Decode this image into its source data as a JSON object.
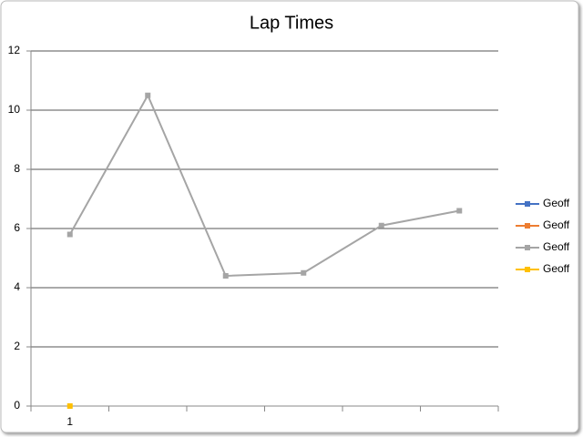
{
  "chart_data": {
    "type": "line",
    "title": "Lap Times",
    "categories": [
      "1",
      null,
      null,
      null,
      null,
      null
    ],
    "series": [
      {
        "name": "Geoff",
        "color": "#4472c4",
        "values": [
          null,
          null,
          null,
          null,
          null,
          null
        ]
      },
      {
        "name": "Geoff",
        "color": "#ed7d31",
        "values": [
          null,
          null,
          null,
          null,
          null,
          null
        ]
      },
      {
        "name": "Geoff",
        "color": "#a5a5a5",
        "values": [
          5.8,
          10.5,
          4.4,
          4.5,
          6.1,
          6.6
        ]
      },
      {
        "name": "Geoff",
        "color": "#ffc000",
        "values": [
          0,
          null,
          null,
          null,
          null,
          null
        ]
      }
    ],
    "ylim": [
      0,
      12
    ],
    "yticks": [
      0,
      2,
      4,
      6,
      8,
      10,
      12
    ],
    "grid": true,
    "legend": "right"
  }
}
